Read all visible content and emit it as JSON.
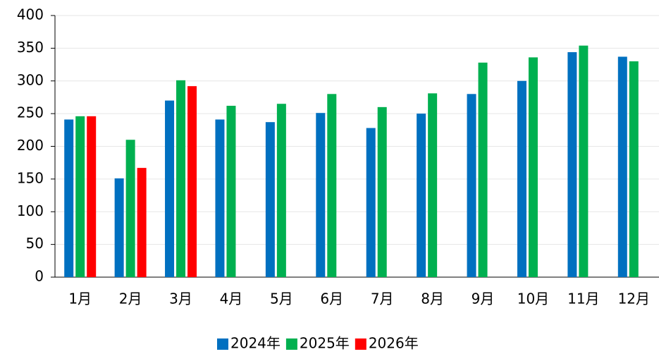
{
  "chart_data": {
    "type": "bar",
    "categories": [
      "1月",
      "2月",
      "3月",
      "4月",
      "5月",
      "6月",
      "7月",
      "8月",
      "9月",
      "10月",
      "11月",
      "12月"
    ],
    "series": [
      {
        "name": "2024年",
        "color": "#0070c0",
        "values": [
          241,
          151,
          270,
          241,
          237,
          251,
          228,
          250,
          280,
          300,
          344,
          337
        ]
      },
      {
        "name": "2025年",
        "color": "#00b050",
        "values": [
          246,
          210,
          301,
          262,
          265,
          280,
          260,
          281,
          328,
          336,
          354,
          330
        ]
      },
      {
        "name": "2026年",
        "color": "#ff0000",
        "values": [
          246,
          167,
          292,
          null,
          null,
          null,
          null,
          null,
          null,
          null,
          null,
          null
        ]
      }
    ],
    "ylim": [
      0,
      400
    ],
    "yticks": [
      0,
      50,
      100,
      150,
      200,
      250,
      300,
      350,
      400
    ],
    "grid": true,
    "legend": "bottom"
  }
}
